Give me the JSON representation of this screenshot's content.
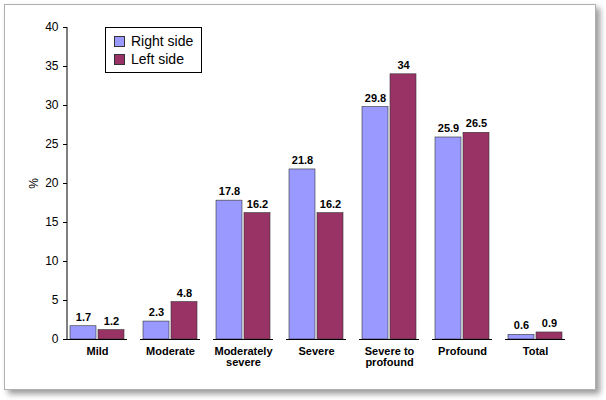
{
  "chart_data": {
    "type": "bar",
    "categories": [
      "Mild",
      "Moderate",
      "Moderately severe",
      "Severe",
      "Severe to profound",
      "Profound",
      "Total"
    ],
    "series": [
      {
        "name": "Right side",
        "color": "#9999ff",
        "values": [
          1.7,
          2.3,
          17.8,
          21.8,
          29.8,
          25.9,
          0.6
        ]
      },
      {
        "name": "Left side",
        "color": "#993366",
        "values": [
          1.2,
          4.8,
          16.2,
          16.2,
          34,
          26.5,
          0.9
        ]
      }
    ],
    "y_label": "%",
    "ylim": [
      0,
      40
    ],
    "yticks": [
      0,
      5,
      10,
      15,
      20,
      25,
      30,
      35,
      40
    ],
    "grid": false,
    "legend": "top-left",
    "data_labels": true
  }
}
